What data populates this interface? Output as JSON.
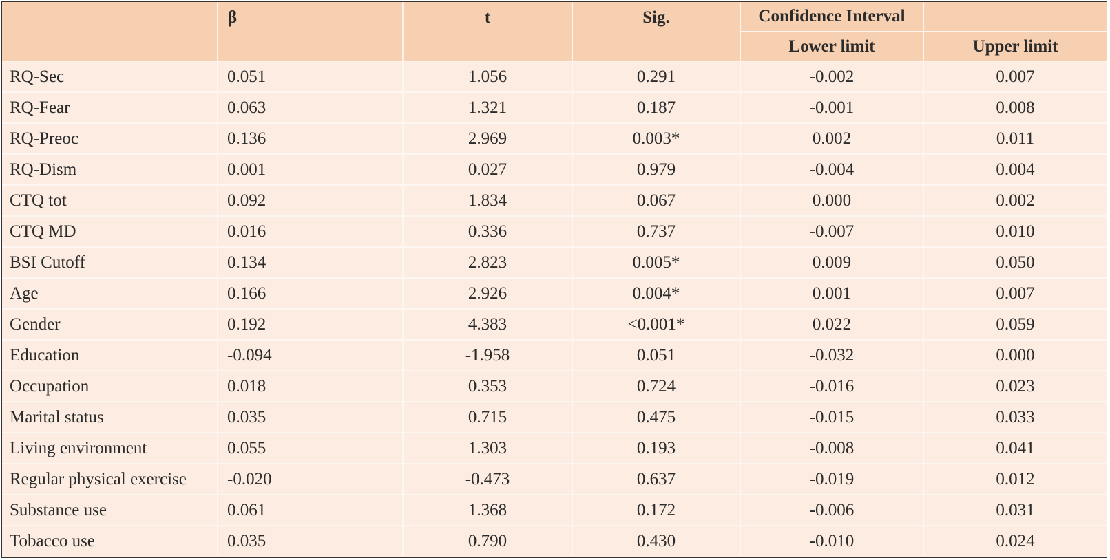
{
  "table": {
    "headers": {
      "beta": "β",
      "t": "t",
      "sig": "Sig.",
      "confidence_interval": "Confidence Interval",
      "lower_limit": "Lower limit",
      "upper_limit": "Upper limit"
    },
    "rows": [
      {
        "label": "RQ-Sec",
        "beta": "0.051",
        "t": "1.056",
        "sig": "0.291",
        "lower": "-0.002",
        "upper": "0.007"
      },
      {
        "label": "RQ-Fear",
        "beta": "0.063",
        "t": "1.321",
        "sig": "0.187",
        "lower": "-0.001",
        "upper": "0.008"
      },
      {
        "label": "RQ-Preoc",
        "beta": "0.136",
        "t": "2.969",
        "sig": "0.003*",
        "lower": "0.002",
        "upper": "0.011"
      },
      {
        "label": "RQ-Dism",
        "beta": "0.001",
        "t": "0.027",
        "sig": "0.979",
        "lower": "-0.004",
        "upper": "0.004"
      },
      {
        "label": "CTQ tot",
        "beta": "0.092",
        "t": "1.834",
        "sig": "0.067",
        "lower": "0.000",
        "upper": "0.002"
      },
      {
        "label": "CTQ MD",
        "beta": "0.016",
        "t": "0.336",
        "sig": "0.737",
        "lower": "-0.007",
        "upper": "0.010"
      },
      {
        "label": "BSI Cutoff",
        "beta": "0.134",
        "t": "2.823",
        "sig": "0.005*",
        "lower": "0.009",
        "upper": "0.050"
      },
      {
        "label": "Age",
        "beta": "0.166",
        "t": "2.926",
        "sig": "0.004*",
        "lower": "0.001",
        "upper": "0.007"
      },
      {
        "label": "Gender",
        "beta": "0.192",
        "t": "4.383",
        "sig": "<0.001*",
        "lower": "0.022",
        "upper": "0.059"
      },
      {
        "label": "Education",
        "beta": "-0.094",
        "t": "-1.958",
        "sig": "0.051",
        "lower": "-0.032",
        "upper": "0.000"
      },
      {
        "label": "Occupation",
        "beta": "0.018",
        "t": "0.353",
        "sig": "0.724",
        "lower": "-0.016",
        "upper": "0.023"
      },
      {
        "label": "Marital status",
        "beta": "0.035",
        "t": "0.715",
        "sig": "0.475",
        "lower": "-0.015",
        "upper": "0.033"
      },
      {
        "label": "Living environment",
        "beta": "0.055",
        "t": "1.303",
        "sig": "0.193",
        "lower": "-0.008",
        "upper": "0.041"
      },
      {
        "label": "Regular physical exercise",
        "beta": "-0.020",
        "t": "-0.473",
        "sig": "0.637",
        "lower": "-0.019",
        "upper": "0.012"
      },
      {
        "label": "Substance use",
        "beta": "0.061",
        "t": "1.368",
        "sig": "0.172",
        "lower": "-0.006",
        "upper": "0.031"
      },
      {
        "label": "Tobacco use",
        "beta": "0.035",
        "t": "0.790",
        "sig": "0.430",
        "lower": "-0.010",
        "upper": "0.024"
      }
    ]
  },
  "colors": {
    "header_bg": "#f7d0b1",
    "body_bg": "#fcece1",
    "grid_line": "#fdf6f1",
    "border": "#333333"
  }
}
